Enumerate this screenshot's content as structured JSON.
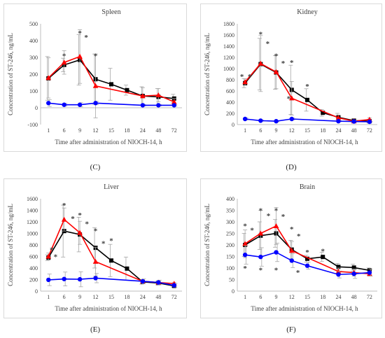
{
  "panels": [
    {
      "caption": "(C)",
      "chart_data": {
        "type": "line",
        "title": "Spleen",
        "xlabel": "Time after administration of NIOCH-14, h",
        "ylabel": "Concentration of ST-246, ng/mL",
        "categories": [
          "1",
          "6",
          "9",
          "12",
          "15",
          "18",
          "24",
          "48",
          "72"
        ],
        "ylim": [
          -100,
          500
        ],
        "yticks": [
          -100,
          0,
          100,
          200,
          300,
          400,
          500
        ],
        "series": [
          {
            "color": "#000000",
            "marker": "square",
            "values": [
              175,
              255,
              285,
              170,
              140,
              105,
              70,
              65,
              55
            ],
            "err": [
              130,
              40,
              150,
              150,
              95,
              30,
              55,
              50,
              25
            ]
          },
          {
            "color": "#ff0000",
            "marker": "triangle",
            "values": [
              178,
              270,
              305,
              130,
              null,
              null,
              70,
              75,
              35
            ],
            "err": [
              120,
              70,
              160,
              190,
              null,
              null,
              50,
              40,
              20
            ]
          },
          {
            "color": "#0000ff",
            "marker": "circle",
            "values": [
              28,
              18,
              18,
              28,
              null,
              null,
              15,
              15,
              15
            ],
            "err": [
              20,
              8,
              12,
              10,
              null,
              null,
              5,
              5,
              5
            ]
          }
        ],
        "stars": [
          [
            1,
            310
          ],
          [
            2,
            445
          ],
          [
            2.4,
            420
          ],
          [
            3,
            310
          ]
        ]
      }
    },
    {
      "caption": "(D)",
      "chart_data": {
        "type": "line",
        "title": "Kidney",
        "xlabel": "Time after administration of NIOCH-14, h",
        "ylabel": "Concentration of ST-246, ng/mL",
        "categories": [
          "1",
          "6",
          "9",
          "12",
          "15",
          "18",
          "24",
          "48",
          "72"
        ],
        "ylim": [
          0,
          1800
        ],
        "yticks": [
          0,
          200,
          400,
          600,
          800,
          1000,
          1200,
          1400,
          1600,
          1800
        ],
        "series": [
          {
            "color": "#000000",
            "marker": "square",
            "values": [
              740,
              1080,
              930,
              620,
              440,
              210,
              130,
              70,
              60
            ],
            "err": [
              80,
              460,
              300,
              440,
              200,
              60,
              70,
              30,
              30
            ]
          },
          {
            "color": "#ff0000",
            "marker": "triangle",
            "values": [
              760,
              1090,
              940,
              470,
              null,
              null,
              120,
              60,
              90
            ],
            "err": [
              60,
              500,
              300,
              300,
              null,
              null,
              50,
              20,
              30
            ]
          },
          {
            "color": "#0000ff",
            "marker": "circle",
            "values": [
              100,
              70,
              60,
              100,
              null,
              null,
              60,
              55,
              50
            ],
            "err": [
              20,
              10,
              10,
              20,
              null,
              null,
              10,
              10,
              10
            ]
          }
        ],
        "stars": [
          [
            -0.2,
            860
          ],
          [
            0.3,
            860
          ],
          [
            1,
            1620
          ],
          [
            1.45,
            1450
          ],
          [
            2,
            1230
          ],
          [
            2.45,
            1100
          ],
          [
            3,
            1110
          ],
          [
            2.8,
            470
          ],
          [
            4,
            690
          ]
        ]
      }
    },
    {
      "caption": "(E)",
      "chart_data": {
        "type": "line",
        "title": "Liver",
        "xlabel": "Time after administration of NIOCH-14, h",
        "ylabel": "Concentration of ST-246, ng/mL",
        "categories": [
          "1",
          "6",
          "9",
          "12",
          "15",
          "18",
          "24",
          "48",
          "72"
        ],
        "ylim": [
          0,
          1600
        ],
        "yticks": [
          0,
          200,
          400,
          600,
          800,
          1000,
          1200,
          1400,
          1600
        ],
        "series": [
          {
            "color": "#000000",
            "marker": "square",
            "values": [
              580,
              1040,
              980,
              750,
              530,
              390,
              160,
              140,
              90
            ],
            "err": [
              50,
              450,
              300,
              350,
              280,
              200,
              40,
              30,
              20
            ]
          },
          {
            "color": "#ff0000",
            "marker": "triangle",
            "values": [
              600,
              1240,
              1010,
              510,
              null,
              null,
              170,
              150,
              130
            ],
            "err": [
              60,
              200,
              200,
              250,
              null,
              null,
              30,
              30,
              20
            ]
          },
          {
            "color": "#0000ff",
            "marker": "circle",
            "values": [
              195,
              210,
              205,
              225,
              null,
              null,
              170,
              150,
              100
            ],
            "err": [
              100,
              120,
              130,
              80,
              null,
              null,
              40,
              40,
              30
            ]
          }
        ],
        "stars": [
          [
            0.2,
            720
          ],
          [
            0.45,
            600
          ],
          [
            1,
            1490
          ],
          [
            1.55,
            1260
          ],
          [
            2,
            1320
          ],
          [
            2.45,
            1170
          ],
          [
            3,
            1050
          ],
          [
            3.5,
            830
          ],
          [
            4,
            880
          ]
        ]
      }
    },
    {
      "caption": "(F)",
      "chart_data": {
        "type": "line",
        "title": "Brain",
        "xlabel": "Time after administration of NIOCH-14, h",
        "ylabel": "Concentration of ST-246, ng/mL",
        "categories": [
          "1",
          "6",
          "9",
          "12",
          "15",
          "18",
          "24",
          "48",
          "72"
        ],
        "ylim": [
          0,
          400
        ],
        "yticks": [
          0,
          50,
          100,
          150,
          200,
          250,
          300,
          350,
          400
        ],
        "series": [
          {
            "color": "#000000",
            "marker": "square",
            "values": [
              200,
              240,
              250,
              180,
              140,
              148,
              105,
              102,
              90
            ],
            "err": [
              50,
              60,
              60,
              40,
              15,
              20,
              15,
              15,
              10
            ]
          },
          {
            "color": "#ff0000",
            "marker": "triangle",
            "values": [
              205,
              250,
              282,
              175,
              null,
              null,
              85,
              80,
              75
            ],
            "err": [
              60,
              100,
              80,
              40,
              null,
              null,
              15,
              15,
              10
            ]
          },
          {
            "color": "#0000ff",
            "marker": "circle",
            "values": [
              157,
              148,
              168,
              132,
              110,
              null,
              72,
              75,
              80
            ],
            "err": [
              40,
              40,
              40,
              30,
              15,
              null,
              15,
              20,
              15
            ]
          }
        ],
        "stars": [
          [
            0,
            283
          ],
          [
            0.45,
            265
          ],
          [
            1,
            350
          ],
          [
            1.5,
            327
          ],
          [
            2,
            350
          ],
          [
            2.45,
            325
          ],
          [
            3,
            270
          ],
          [
            3.45,
            240
          ],
          [
            4,
            170
          ],
          [
            5,
            175
          ],
          [
            0,
            100
          ],
          [
            1,
            92
          ],
          [
            2,
            92
          ],
          [
            3.4,
            82
          ]
        ]
      }
    }
  ]
}
